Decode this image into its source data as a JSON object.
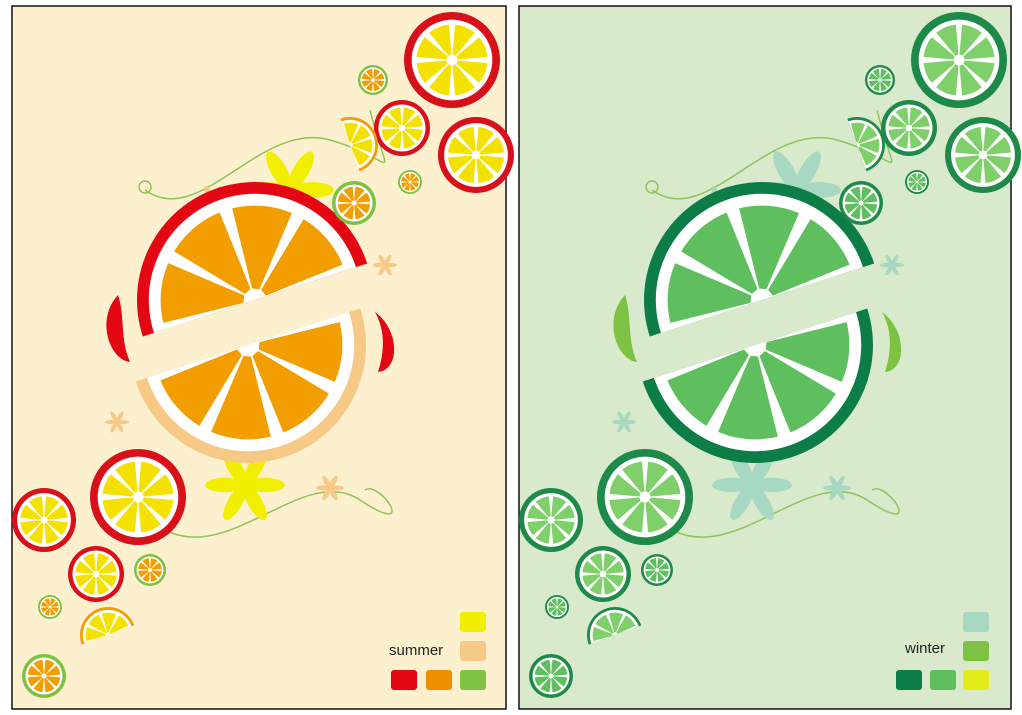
{
  "panels": [
    {
      "label": "summer"
    },
    {
      "label": "winter"
    }
  ]
}
